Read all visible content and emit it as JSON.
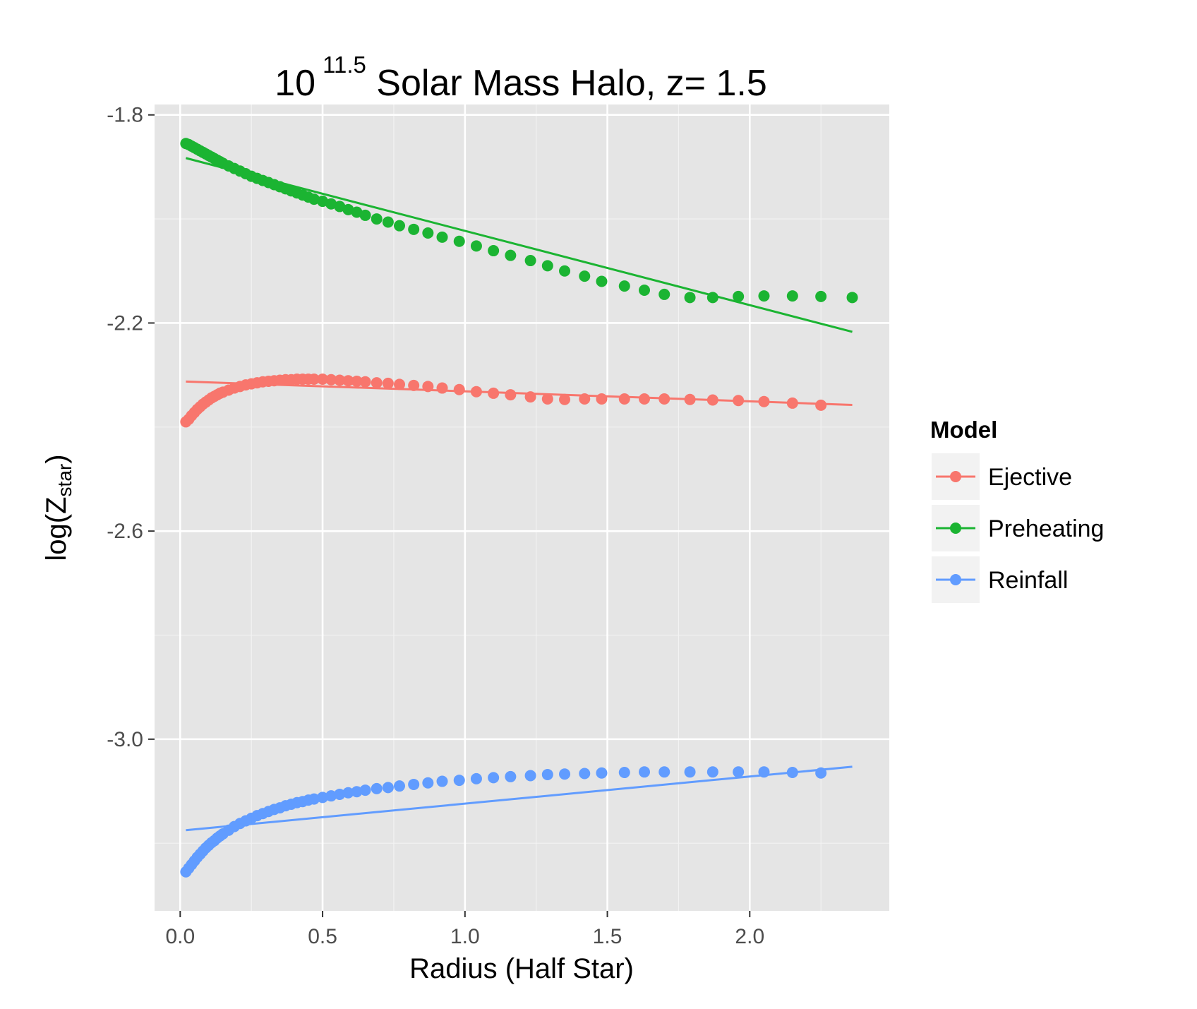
{
  "chart_data": {
    "type": "scatter",
    "title": {
      "base": "10",
      "exponent": "11.5",
      "rest": " Solar Mass Halo, z= 1.5"
    },
    "xlabel": "Radius (Half Star)",
    "ylabel": {
      "prefix": "log(",
      "main": "Z",
      "subscript": "star",
      "suffix": ")"
    },
    "xlim": [
      -0.09,
      2.49
    ],
    "ylim": [
      -3.33,
      -1.78
    ],
    "x_ticks": [
      0.0,
      0.5,
      1.0,
      1.5,
      2.0
    ],
    "x_tick_labels": [
      "0.0",
      "0.5",
      "1.0",
      "1.5",
      "2.0"
    ],
    "y_ticks": [
      -1.8,
      -2.2,
      -2.6,
      -3.0
    ],
    "y_tick_labels": [
      "-1.8",
      "-2.2",
      "-2.6",
      "-3.0"
    ],
    "grid": true,
    "legend": {
      "title": "Model",
      "placement": "right",
      "entries": [
        "Ejective",
        "Preheating",
        "Reinfall"
      ]
    },
    "series": [
      {
        "name": "Ejective",
        "color": "#F8766D",
        "points": [
          [
            0.02,
            -2.39
          ],
          [
            0.03,
            -2.385
          ],
          [
            0.04,
            -2.378
          ],
          [
            0.05,
            -2.372
          ],
          [
            0.06,
            -2.366
          ],
          [
            0.07,
            -2.361
          ],
          [
            0.08,
            -2.356
          ],
          [
            0.09,
            -2.352
          ],
          [
            0.1,
            -2.348
          ],
          [
            0.11,
            -2.344
          ],
          [
            0.12,
            -2.341
          ],
          [
            0.13,
            -2.338
          ],
          [
            0.14,
            -2.335
          ],
          [
            0.15,
            -2.333
          ],
          [
            0.17,
            -2.329
          ],
          [
            0.19,
            -2.325
          ],
          [
            0.21,
            -2.322
          ],
          [
            0.23,
            -2.319
          ],
          [
            0.25,
            -2.317
          ],
          [
            0.27,
            -2.315
          ],
          [
            0.29,
            -2.313
          ],
          [
            0.31,
            -2.312
          ],
          [
            0.33,
            -2.311
          ],
          [
            0.35,
            -2.31
          ],
          [
            0.37,
            -2.309
          ],
          [
            0.39,
            -2.309
          ],
          [
            0.41,
            -2.308
          ],
          [
            0.43,
            -2.308
          ],
          [
            0.45,
            -2.308
          ],
          [
            0.47,
            -2.308
          ],
          [
            0.5,
            -2.308
          ],
          [
            0.53,
            -2.309
          ],
          [
            0.56,
            -2.31
          ],
          [
            0.59,
            -2.311
          ],
          [
            0.62,
            -2.312
          ],
          [
            0.65,
            -2.313
          ],
          [
            0.69,
            -2.315
          ],
          [
            0.73,
            -2.316
          ],
          [
            0.77,
            -2.318
          ],
          [
            0.82,
            -2.32
          ],
          [
            0.87,
            -2.322
          ],
          [
            0.92,
            -2.325
          ],
          [
            0.98,
            -2.328
          ],
          [
            1.04,
            -2.332
          ],
          [
            1.1,
            -2.335
          ],
          [
            1.16,
            -2.338
          ],
          [
            1.23,
            -2.342
          ],
          [
            1.29,
            -2.346
          ],
          [
            1.35,
            -2.347
          ],
          [
            1.42,
            -2.346
          ],
          [
            1.48,
            -2.346
          ],
          [
            1.56,
            -2.346
          ],
          [
            1.63,
            -2.346
          ],
          [
            1.7,
            -2.346
          ],
          [
            1.79,
            -2.347
          ],
          [
            1.87,
            -2.348
          ],
          [
            1.96,
            -2.349
          ],
          [
            2.05,
            -2.351
          ],
          [
            2.15,
            -2.354
          ],
          [
            2.25,
            -2.358
          ]
        ],
        "trend": [
          [
            0.02,
            -2.3125
          ],
          [
            2.36,
            -2.3575
          ]
        ]
      },
      {
        "name": "Preheating",
        "color": "#1BB432",
        "points": [
          [
            0.02,
            -1.855
          ],
          [
            0.03,
            -1.857
          ],
          [
            0.04,
            -1.86
          ],
          [
            0.05,
            -1.863
          ],
          [
            0.06,
            -1.866
          ],
          [
            0.07,
            -1.869
          ],
          [
            0.08,
            -1.872
          ],
          [
            0.09,
            -1.875
          ],
          [
            0.1,
            -1.878
          ],
          [
            0.11,
            -1.881
          ],
          [
            0.12,
            -1.884
          ],
          [
            0.13,
            -1.887
          ],
          [
            0.14,
            -1.89
          ],
          [
            0.15,
            -1.893
          ],
          [
            0.17,
            -1.898
          ],
          [
            0.19,
            -1.903
          ],
          [
            0.21,
            -1.908
          ],
          [
            0.23,
            -1.913
          ],
          [
            0.25,
            -1.918
          ],
          [
            0.27,
            -1.922
          ],
          [
            0.29,
            -1.926
          ],
          [
            0.31,
            -1.93
          ],
          [
            0.33,
            -1.934
          ],
          [
            0.35,
            -1.938
          ],
          [
            0.37,
            -1.942
          ],
          [
            0.39,
            -1.946
          ],
          [
            0.41,
            -1.95
          ],
          [
            0.43,
            -1.954
          ],
          [
            0.45,
            -1.958
          ],
          [
            0.47,
            -1.962
          ],
          [
            0.5,
            -1.966
          ],
          [
            0.53,
            -1.971
          ],
          [
            0.56,
            -1.976
          ],
          [
            0.59,
            -1.982
          ],
          [
            0.62,
            -1.987
          ],
          [
            0.65,
            -1.993
          ],
          [
            0.69,
            -2.0
          ],
          [
            0.73,
            -2.006
          ],
          [
            0.77,
            -2.013
          ],
          [
            0.82,
            -2.02
          ],
          [
            0.87,
            -2.027
          ],
          [
            0.92,
            -2.035
          ],
          [
            0.98,
            -2.043
          ],
          [
            1.04,
            -2.052
          ],
          [
            1.1,
            -2.061
          ],
          [
            1.16,
            -2.07
          ],
          [
            1.23,
            -2.08
          ],
          [
            1.29,
            -2.09
          ],
          [
            1.35,
            -2.1
          ],
          [
            1.42,
            -2.11
          ],
          [
            1.48,
            -2.12
          ],
          [
            1.56,
            -2.129
          ],
          [
            1.63,
            -2.137
          ],
          [
            1.7,
            -2.145
          ],
          [
            1.79,
            -2.151
          ],
          [
            1.87,
            -2.151
          ],
          [
            1.96,
            -2.149
          ],
          [
            2.05,
            -2.148
          ],
          [
            2.15,
            -2.148
          ],
          [
            2.25,
            -2.149
          ],
          [
            2.36,
            -2.151
          ]
        ],
        "trend": [
          [
            0.02,
            -1.883
          ],
          [
            2.36,
            -2.217
          ]
        ]
      },
      {
        "name": "Reinfall",
        "color": "#619CFF",
        "points": [
          [
            0.02,
            -3.255
          ],
          [
            0.03,
            -3.248
          ],
          [
            0.04,
            -3.241
          ],
          [
            0.05,
            -3.234
          ],
          [
            0.06,
            -3.227
          ],
          [
            0.07,
            -3.221
          ],
          [
            0.08,
            -3.215
          ],
          [
            0.09,
            -3.209
          ],
          [
            0.1,
            -3.204
          ],
          [
            0.11,
            -3.199
          ],
          [
            0.12,
            -3.195
          ],
          [
            0.13,
            -3.19
          ],
          [
            0.14,
            -3.186
          ],
          [
            0.15,
            -3.182
          ],
          [
            0.17,
            -3.175
          ],
          [
            0.19,
            -3.168
          ],
          [
            0.21,
            -3.162
          ],
          [
            0.23,
            -3.157
          ],
          [
            0.25,
            -3.152
          ],
          [
            0.27,
            -3.147
          ],
          [
            0.29,
            -3.143
          ],
          [
            0.31,
            -3.139
          ],
          [
            0.33,
            -3.135
          ],
          [
            0.35,
            -3.132
          ],
          [
            0.37,
            -3.128
          ],
          [
            0.39,
            -3.125
          ],
          [
            0.41,
            -3.122
          ],
          [
            0.43,
            -3.12
          ],
          [
            0.45,
            -3.117
          ],
          [
            0.47,
            -3.115
          ],
          [
            0.5,
            -3.112
          ],
          [
            0.53,
            -3.109
          ],
          [
            0.56,
            -3.106
          ],
          [
            0.59,
            -3.103
          ],
          [
            0.62,
            -3.101
          ],
          [
            0.65,
            -3.098
          ],
          [
            0.69,
            -3.095
          ],
          [
            0.73,
            -3.093
          ],
          [
            0.77,
            -3.09
          ],
          [
            0.82,
            -3.087
          ],
          [
            0.87,
            -3.084
          ],
          [
            0.92,
            -3.081
          ],
          [
            0.98,
            -3.079
          ],
          [
            1.04,
            -3.076
          ],
          [
            1.1,
            -3.074
          ],
          [
            1.16,
            -3.072
          ],
          [
            1.23,
            -3.07
          ],
          [
            1.29,
            -3.068
          ],
          [
            1.35,
            -3.067
          ],
          [
            1.42,
            -3.066
          ],
          [
            1.48,
            -3.065
          ],
          [
            1.56,
            -3.064
          ],
          [
            1.63,
            -3.063
          ],
          [
            1.7,
            -3.063
          ],
          [
            1.79,
            -3.063
          ],
          [
            1.87,
            -3.063
          ],
          [
            1.96,
            -3.063
          ],
          [
            2.05,
            -3.063
          ],
          [
            2.15,
            -3.064
          ],
          [
            2.25,
            -3.065
          ]
        ],
        "trend": [
          [
            0.02,
            -3.175
          ],
          [
            2.36,
            -3.053
          ]
        ]
      }
    ]
  }
}
